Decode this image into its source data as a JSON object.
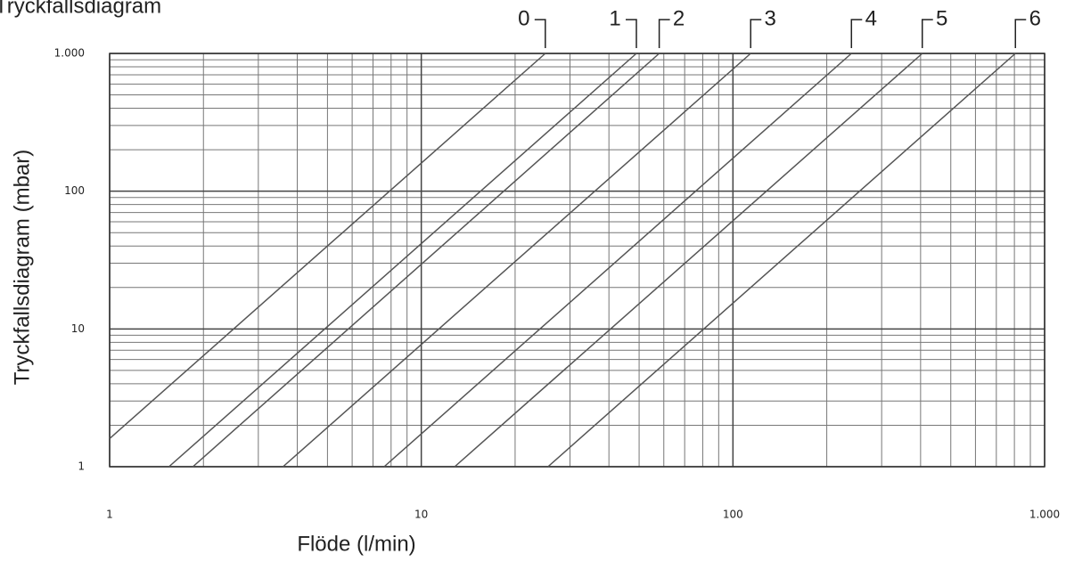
{
  "chart_data": {
    "type": "line",
    "title": "Tryckfallsdiagram",
    "x_label": "Flöde (l/min)",
    "y_label": "Tryckfallsdiagram (mbar)",
    "log_x": true,
    "log_y": true,
    "grid": true,
    "xlim": [
      1,
      1000
    ],
    "ylim": [
      1,
      1000
    ],
    "xticks": [
      1,
      10,
      100,
      {
        "value": 1000,
        "label": "1.000"
      }
    ],
    "yticks": [
      1,
      10,
      100,
      {
        "value": 1000,
        "label": "1.000"
      }
    ],
    "series": [
      {
        "name": "0",
        "color": "#555555",
        "x": [
          1,
          25
        ],
        "values": [
          1.6,
          1000
        ]
      },
      {
        "name": "1",
        "color": "#555555",
        "x": [
          1.55,
          49
        ],
        "values": [
          1,
          1000
        ]
      },
      {
        "name": "2",
        "color": "#555555",
        "x": [
          1.85,
          58
        ],
        "values": [
          1,
          1000
        ]
      },
      {
        "name": "3",
        "color": "#555555",
        "x": [
          3.6,
          114
        ],
        "values": [
          1,
          1000
        ]
      },
      {
        "name": "4",
        "color": "#555555",
        "x": [
          7.6,
          240
        ],
        "values": [
          1,
          1000
        ]
      },
      {
        "name": "5",
        "color": "#555555",
        "x": [
          12.8,
          405
        ],
        "values": [
          1,
          1000
        ]
      },
      {
        "name": "6",
        "color": "#555555",
        "x": [
          25.5,
          806
        ],
        "values": [
          1,
          1000
        ]
      }
    ]
  }
}
